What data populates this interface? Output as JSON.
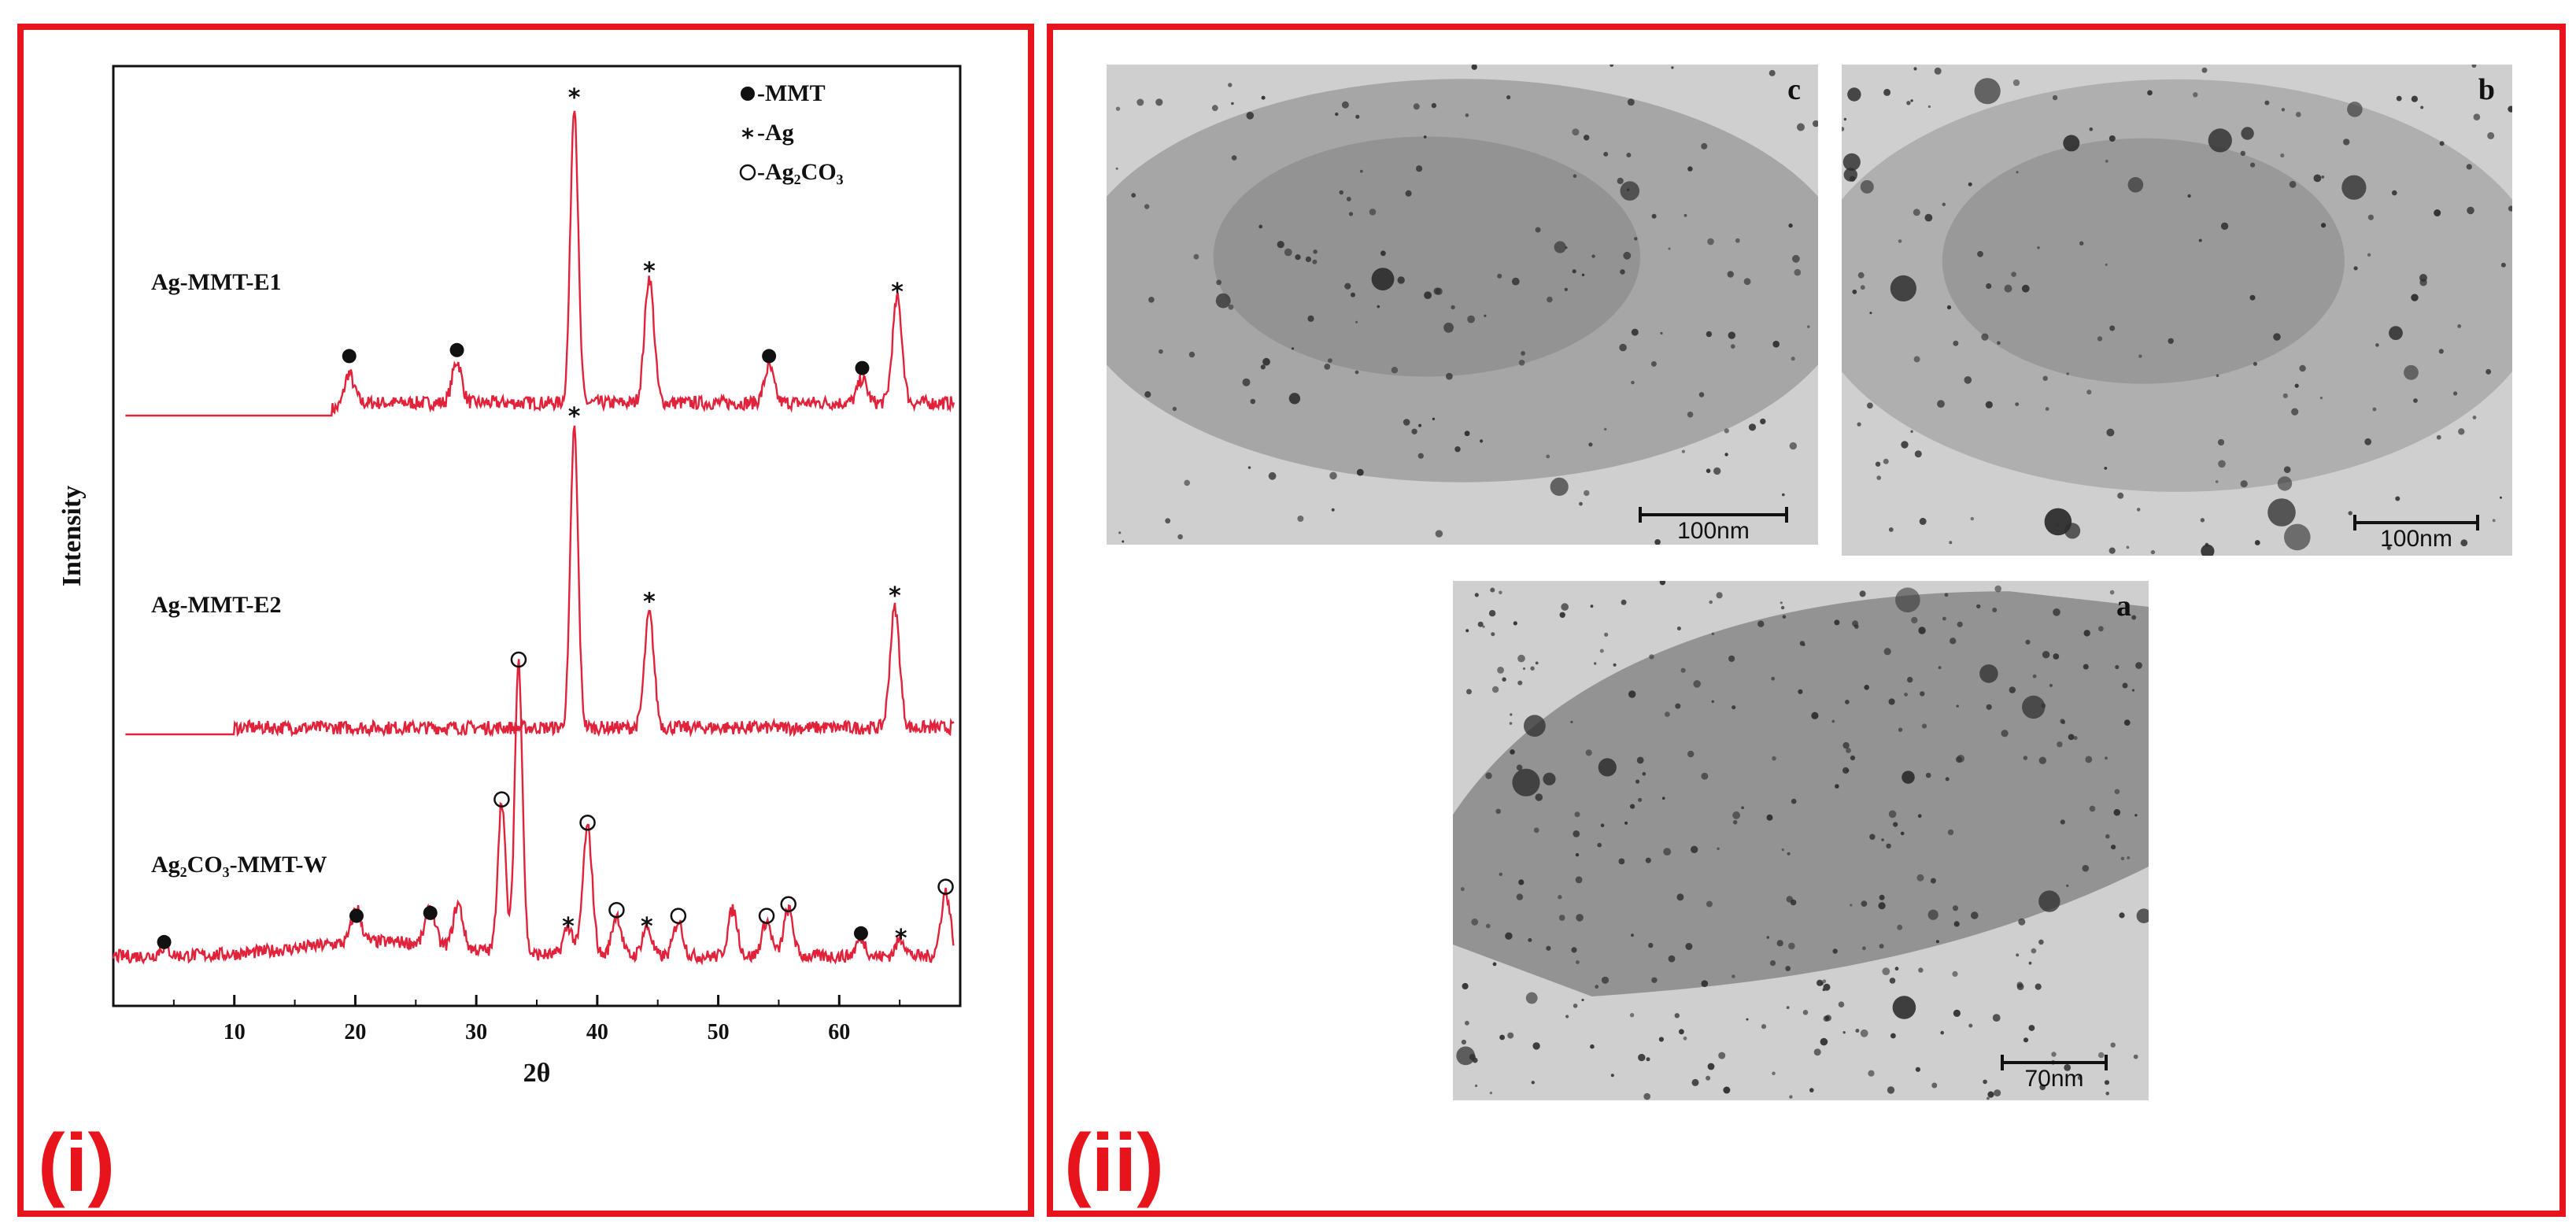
{
  "panel_i": {
    "label": "(i)",
    "chart_data": {
      "type": "line",
      "title": "",
      "xlabel": "2θ",
      "ylabel": "Intensity",
      "xlim": [
        0,
        70
      ],
      "x_ticks": [
        10,
        20,
        30,
        40,
        50,
        60
      ],
      "legend": [
        {
          "marker": "filled-circle",
          "text": "-MMT"
        },
        {
          "marker": "star",
          "text": "-Ag"
        },
        {
          "marker": "open-circle",
          "text": "-Ag₂CO₃"
        }
      ],
      "legend_position": "top-right",
      "line_color": "#e0223a",
      "series": [
        {
          "name": "Ag-MMT-E1",
          "x_start": 1,
          "noise_start": 18,
          "peaks": [
            {
              "x": 19.5,
              "height": 0.12,
              "marker": "filled-circle"
            },
            {
              "x": 28.4,
              "height": 0.14,
              "marker": "filled-circle"
            },
            {
              "x": 38.1,
              "height": 1.0,
              "marker": "star"
            },
            {
              "x": 44.3,
              "height": 0.42,
              "marker": "star"
            },
            {
              "x": 54.2,
              "height": 0.12,
              "marker": "filled-circle"
            },
            {
              "x": 61.9,
              "height": 0.08,
              "marker": "filled-circle"
            },
            {
              "x": 64.8,
              "height": 0.35,
              "marker": "star"
            }
          ]
        },
        {
          "name": "Ag-MMT-E2",
          "x_start": 1,
          "noise_start": 10,
          "peaks": [
            {
              "x": 38.1,
              "height": 1.0,
              "marker": "star"
            },
            {
              "x": 44.3,
              "height": 0.38,
              "marker": "star"
            },
            {
              "x": 64.6,
              "height": 0.4,
              "marker": "star"
            }
          ]
        },
        {
          "name": "Ag₂CO₃-MMT-W",
          "x_start": 0,
          "noise_start": 0,
          "peaks": [
            {
              "x": 4.2,
              "height": 0.03,
              "marker": "filled-circle"
            },
            {
              "x": 20.1,
              "height": 0.12,
              "marker": "filled-circle"
            },
            {
              "x": 26.2,
              "height": 0.13,
              "marker": "filled-circle"
            },
            {
              "x": 28.5,
              "height": 0.15,
              "marker": null
            },
            {
              "x": 32.1,
              "height": 0.52,
              "marker": "open-circle"
            },
            {
              "x": 33.5,
              "height": 1.0,
              "marker": "open-circle"
            },
            {
              "x": 37.6,
              "height": 0.1,
              "marker": "star"
            },
            {
              "x": 39.2,
              "height": 0.44,
              "marker": "open-circle"
            },
            {
              "x": 41.6,
              "height": 0.14,
              "marker": "open-circle"
            },
            {
              "x": 44.1,
              "height": 0.1,
              "marker": "star"
            },
            {
              "x": 46.7,
              "height": 0.12,
              "marker": "open-circle"
            },
            {
              "x": 51.2,
              "height": 0.16,
              "marker": null
            },
            {
              "x": 54.0,
              "height": 0.12,
              "marker": "open-circle"
            },
            {
              "x": 55.8,
              "height": 0.16,
              "marker": "open-circle"
            },
            {
              "x": 61.8,
              "height": 0.06,
              "marker": "filled-circle"
            },
            {
              "x": 65.1,
              "height": 0.06,
              "marker": "star"
            },
            {
              "x": 68.8,
              "height": 0.22,
              "marker": "open-circle"
            }
          ]
        }
      ]
    }
  },
  "panel_ii": {
    "label": "(ii)",
    "images": [
      {
        "letter": "c",
        "scale_text": "100nm",
        "tint": "#8a8a8a"
      },
      {
        "letter": "b",
        "scale_text": "100nm",
        "tint": "#9a9a9a"
      },
      {
        "letter": "a",
        "scale_text": "70nm",
        "tint": "#7f7f7f"
      }
    ]
  }
}
